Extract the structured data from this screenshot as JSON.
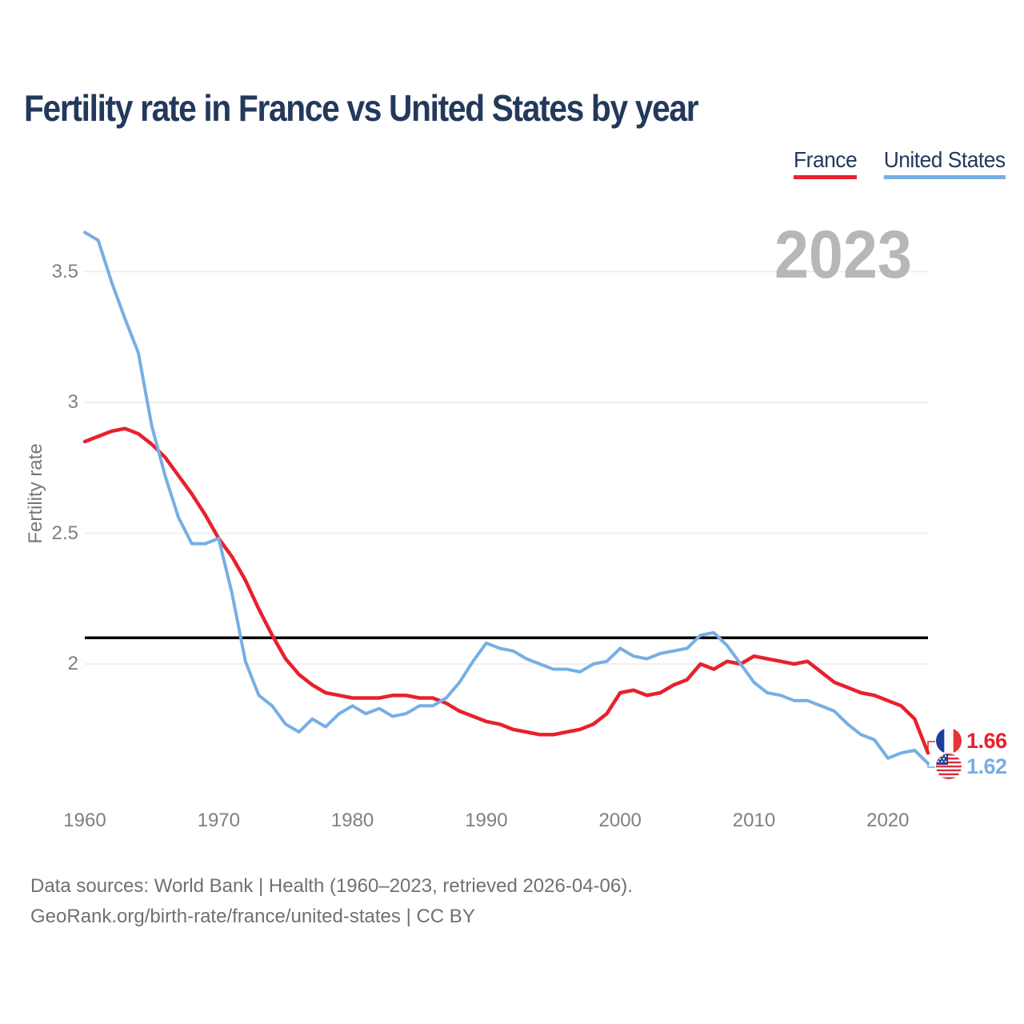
{
  "page": {
    "title": "Fertility rate in France vs United States by year",
    "footer": {
      "line1": "Data sources: World Bank | Health (1960–2023, retrieved 2026-04-06).",
      "line2": "GeoRank.org/birth-rate/france/united-states | CC BY"
    }
  },
  "chart_data": {
    "type": "line",
    "title": "Fertility rate in France vs United States by year",
    "xlabel": "",
    "ylabel": "Fertility rate",
    "watermark": "2023",
    "x": [
      1960,
      1961,
      1962,
      1963,
      1964,
      1965,
      1966,
      1967,
      1968,
      1969,
      1970,
      1971,
      1972,
      1973,
      1974,
      1975,
      1976,
      1977,
      1978,
      1979,
      1980,
      1981,
      1982,
      1983,
      1984,
      1985,
      1986,
      1987,
      1988,
      1989,
      1990,
      1991,
      1992,
      1993,
      1994,
      1995,
      1996,
      1997,
      1998,
      1999,
      2000,
      2001,
      2002,
      2003,
      2004,
      2005,
      2006,
      2007,
      2008,
      2009,
      2010,
      2011,
      2012,
      2013,
      2014,
      2015,
      2016,
      2017,
      2018,
      2019,
      2020,
      2021,
      2022,
      2023
    ],
    "series": [
      {
        "name": "France",
        "color": "#e8212d",
        "end_label": "1.66",
        "flag_icon": "france-flag",
        "values": [
          2.85,
          2.87,
          2.89,
          2.9,
          2.88,
          2.84,
          2.79,
          2.72,
          2.65,
          2.57,
          2.48,
          2.41,
          2.32,
          2.21,
          2.11,
          2.02,
          1.96,
          1.92,
          1.89,
          1.88,
          1.87,
          1.87,
          1.87,
          1.88,
          1.88,
          1.87,
          1.87,
          1.85,
          1.82,
          1.8,
          1.78,
          1.77,
          1.75,
          1.74,
          1.73,
          1.73,
          1.74,
          1.75,
          1.77,
          1.81,
          1.89,
          1.9,
          1.88,
          1.89,
          1.92,
          1.94,
          2.0,
          1.98,
          2.01,
          2.0,
          2.03,
          2.02,
          2.01,
          2.0,
          2.01,
          1.97,
          1.93,
          1.91,
          1.89,
          1.88,
          1.86,
          1.84,
          1.79,
          1.66
        ]
      },
      {
        "name": "United States",
        "color": "#76afe4",
        "end_label": "1.62",
        "flag_icon": "us-flag",
        "values": [
          3.65,
          3.62,
          3.46,
          3.32,
          3.19,
          2.91,
          2.72,
          2.56,
          2.46,
          2.46,
          2.48,
          2.27,
          2.01,
          1.88,
          1.84,
          1.77,
          1.74,
          1.79,
          1.76,
          1.81,
          1.84,
          1.81,
          1.83,
          1.8,
          1.81,
          1.84,
          1.84,
          1.87,
          1.93,
          2.01,
          2.08,
          2.06,
          2.05,
          2.02,
          2.0,
          1.98,
          1.98,
          1.97,
          2.0,
          2.01,
          2.06,
          2.03,
          2.02,
          2.04,
          2.05,
          2.06,
          2.11,
          2.12,
          2.07,
          2.0,
          1.93,
          1.89,
          1.88,
          1.86,
          1.86,
          1.84,
          1.82,
          1.77,
          1.73,
          1.71,
          1.64,
          1.66,
          1.67,
          1.62
        ]
      }
    ],
    "x_ticks": [
      "1960",
      "1970",
      "1980",
      "1990",
      "2000",
      "2010",
      "2020"
    ],
    "y_ticks": [
      "2",
      "2.5",
      "3",
      "3.5"
    ],
    "xlim": [
      1960,
      2023
    ],
    "ylim": [
      1.55,
      3.72
    ],
    "grid": "horizontal",
    "legend_position": "top-right",
    "reference_line": {
      "value": 2.1,
      "color": "#000000"
    }
  }
}
